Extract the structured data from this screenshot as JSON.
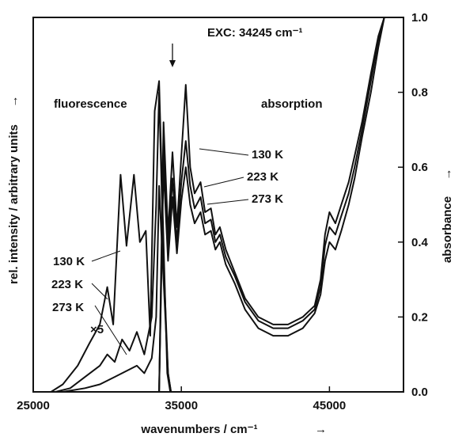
{
  "chart_data": {
    "type": "line",
    "title": "",
    "xlabel": "wavenumbers / cm⁻¹",
    "ylabel_left": "rel. intensity / arbitrary units",
    "ylabel_right": "absorbance",
    "axis_arrow": "→",
    "xlim": [
      25000,
      50000
    ],
    "ylim_right": [
      0.0,
      1.0
    ],
    "x_ticks": [
      "25000",
      "35000",
      "45000"
    ],
    "x_tick_values": [
      25000,
      35000,
      45000
    ],
    "y_right_ticks": [
      "0.0",
      "0.2",
      "0.4",
      "0.6",
      "0.8",
      "1.0"
    ],
    "y_right_tick_values": [
      0.0,
      0.2,
      0.4,
      0.6,
      0.8,
      1.0
    ],
    "annotations": {
      "excitation": "EXC: 34245 cm⁻¹",
      "excitation_x": 34245,
      "fluorescence": "fluorescence",
      "absorption": "absorption",
      "scale": "×5",
      "temps": [
        "130 K",
        "223 K",
        "273 K"
      ]
    },
    "series": [
      {
        "name": "130 K",
        "kind": "fluorescence",
        "x": [
          26200,
          27000,
          28000,
          28800,
          29500,
          30000,
          30400,
          30900,
          31300,
          31800,
          32200,
          32600,
          32900,
          33200,
          33500,
          33800,
          34050,
          34250
        ],
        "y": [
          0.0,
          0.02,
          0.07,
          0.13,
          0.18,
          0.28,
          0.18,
          0.58,
          0.39,
          0.58,
          0.4,
          0.43,
          0.15,
          0.75,
          0.83,
          0.4,
          0.05,
          0.0
        ]
      },
      {
        "name": "223 K",
        "kind": "fluorescence",
        "x": [
          26500,
          27500,
          28500,
          29500,
          30000,
          30500,
          31000,
          31500,
          32000,
          32500,
          33000,
          33300,
          33500,
          33800,
          34100,
          34300
        ],
        "y": [
          0.0,
          0.01,
          0.04,
          0.07,
          0.1,
          0.08,
          0.14,
          0.11,
          0.16,
          0.1,
          0.2,
          0.5,
          0.8,
          0.35,
          0.05,
          0.0
        ]
      },
      {
        "name": "273 K",
        "kind": "fluorescence",
        "x": [
          27000,
          28500,
          29500,
          30500,
          31500,
          32000,
          32500,
          33000,
          33300,
          33500,
          33800,
          34100,
          34300
        ],
        "y": [
          0.0,
          0.01,
          0.02,
          0.04,
          0.06,
          0.07,
          0.05,
          0.09,
          0.2,
          0.55,
          0.3,
          0.05,
          0.0
        ]
      },
      {
        "name": "130 K",
        "kind": "absorption",
        "x": [
          33500,
          33800,
          34100,
          34400,
          34700,
          35000,
          35300,
          35600,
          35900,
          36300,
          36600,
          37000,
          37300,
          37600,
          38000,
          38600,
          39300,
          40200,
          41200,
          42200,
          43200,
          44000,
          44400,
          44700,
          45000,
          45400,
          45800,
          46300,
          46700,
          47200,
          47800,
          48300,
          48700,
          49000
        ],
        "y": [
          0.0,
          0.72,
          0.42,
          0.64,
          0.44,
          0.63,
          0.82,
          0.6,
          0.53,
          0.56,
          0.48,
          0.49,
          0.42,
          0.44,
          0.38,
          0.32,
          0.25,
          0.2,
          0.18,
          0.18,
          0.2,
          0.23,
          0.3,
          0.42,
          0.48,
          0.45,
          0.5,
          0.56,
          0.63,
          0.72,
          0.85,
          0.95,
          1.0,
          1.05
        ]
      },
      {
        "name": "223 K",
        "kind": "absorption",
        "x": [
          33500,
          33800,
          34100,
          34400,
          34700,
          35000,
          35300,
          35600,
          35900,
          36300,
          36600,
          37000,
          37300,
          37600,
          38000,
          38600,
          39300,
          40200,
          41200,
          42200,
          43200,
          44000,
          44400,
          44700,
          45000,
          45400,
          45800,
          46300,
          46700,
          47200,
          47800,
          48300,
          48700,
          49000
        ],
        "y": [
          0.0,
          0.66,
          0.38,
          0.57,
          0.4,
          0.56,
          0.67,
          0.55,
          0.49,
          0.52,
          0.45,
          0.46,
          0.4,
          0.42,
          0.36,
          0.31,
          0.24,
          0.19,
          0.17,
          0.17,
          0.19,
          0.22,
          0.28,
          0.39,
          0.44,
          0.42,
          0.47,
          0.53,
          0.6,
          0.7,
          0.83,
          0.94,
          1.0,
          1.05
        ]
      },
      {
        "name": "273 K",
        "kind": "absorption",
        "x": [
          33500,
          33800,
          34100,
          34400,
          34700,
          35000,
          35300,
          35600,
          35900,
          36300,
          36600,
          37000,
          37300,
          37600,
          38000,
          38600,
          39300,
          40200,
          41200,
          42200,
          43200,
          44000,
          44400,
          44700,
          45000,
          45400,
          45800,
          46300,
          46700,
          47200,
          47800,
          48300,
          48700,
          49000
        ],
        "y": [
          0.0,
          0.6,
          0.35,
          0.52,
          0.37,
          0.51,
          0.6,
          0.5,
          0.45,
          0.48,
          0.42,
          0.43,
          0.38,
          0.4,
          0.34,
          0.29,
          0.22,
          0.17,
          0.15,
          0.15,
          0.17,
          0.21,
          0.26,
          0.35,
          0.4,
          0.38,
          0.43,
          0.5,
          0.57,
          0.68,
          0.8,
          0.92,
          1.0,
          1.05
        ]
      }
    ]
  }
}
